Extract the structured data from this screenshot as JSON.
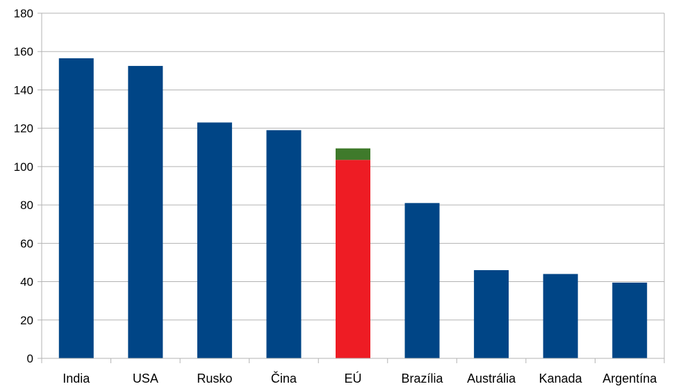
{
  "chart_data": {
    "type": "bar",
    "stacked": true,
    "categories": [
      "India",
      "USA",
      "Rusko",
      "Čina",
      "EÚ",
      "Brazília",
      "Austrália",
      "Kanada",
      "Argentína"
    ],
    "series": [
      {
        "color": "#004586",
        "values": [
          156.5,
          152.5,
          123,
          119,
          0,
          81,
          46,
          44,
          39.5
        ]
      },
      {
        "color": "#ee1c24",
        "values": [
          0,
          0,
          0,
          0,
          103.5,
          0,
          0,
          0,
          0
        ]
      },
      {
        "color": "#3f7a2b",
        "values": [
          0,
          0,
          0,
          0,
          6,
          0,
          0,
          0,
          0
        ]
      }
    ],
    "yticks": [
      "0",
      "20",
      "40",
      "60",
      "80",
      "100",
      "120",
      "140",
      "160",
      "180"
    ],
    "ylim": [
      0,
      180
    ],
    "grid": true,
    "legend": "none",
    "title": "",
    "xlabel": "",
    "ylabel": ""
  }
}
